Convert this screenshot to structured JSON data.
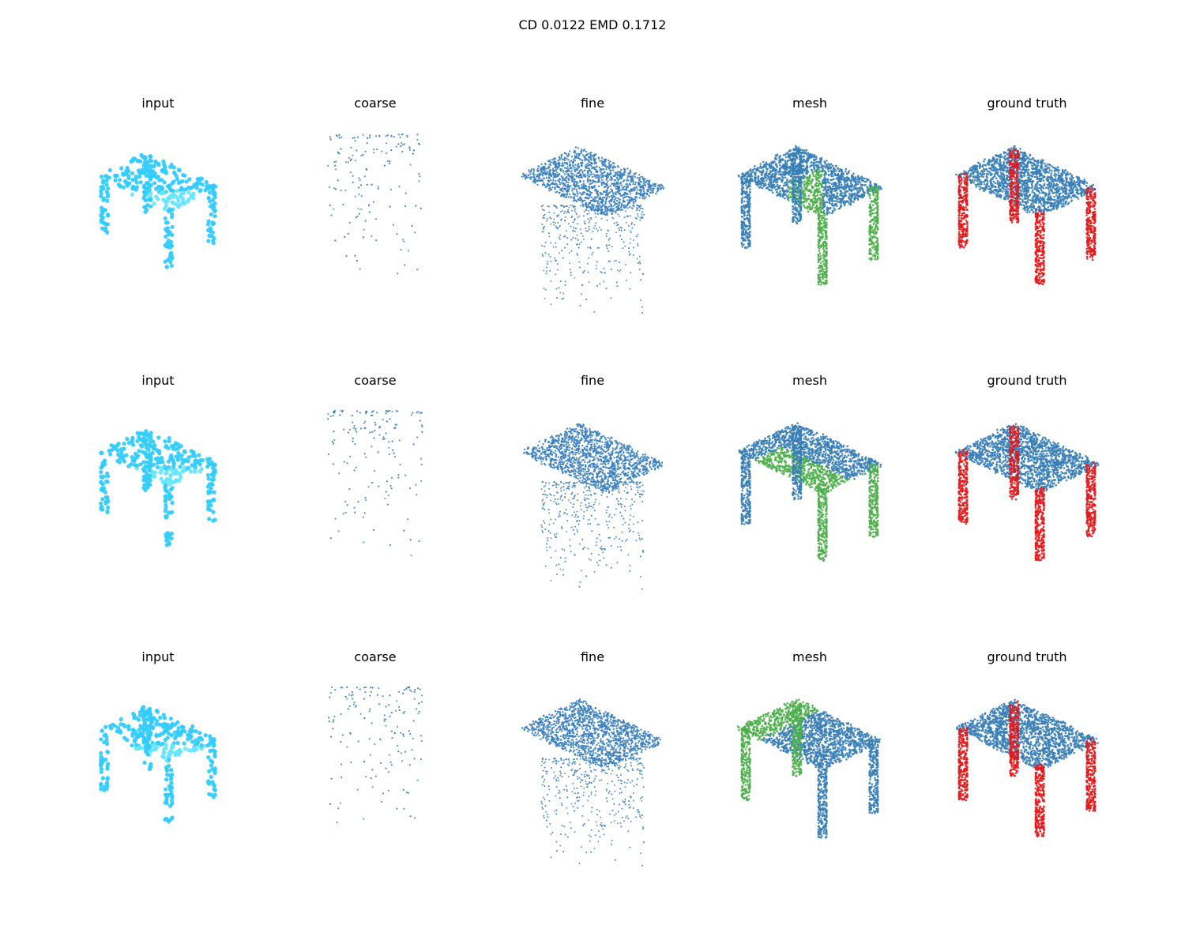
{
  "figure": {
    "title": "CD 0.0122  EMD 0.1712",
    "rows": [
      {
        "panels": [
          {
            "title": "input",
            "kind": "input"
          },
          {
            "title": "coarse",
            "kind": "coarse"
          },
          {
            "title": "fine",
            "kind": "fine"
          },
          {
            "title": "mesh",
            "kind": "mesh"
          },
          {
            "title": "ground truth",
            "kind": "gt"
          }
        ]
      },
      {
        "panels": [
          {
            "title": "input",
            "kind": "input"
          },
          {
            "title": "coarse",
            "kind": "coarse"
          },
          {
            "title": "fine",
            "kind": "fine"
          },
          {
            "title": "mesh",
            "kind": "mesh"
          },
          {
            "title": "ground truth",
            "kind": "gt"
          }
        ]
      },
      {
        "panels": [
          {
            "title": "input",
            "kind": "input"
          },
          {
            "title": "coarse",
            "kind": "coarse"
          },
          {
            "title": "fine",
            "kind": "fine"
          },
          {
            "title": "mesh",
            "kind": "mesh"
          },
          {
            "title": "ground truth",
            "kind": "gt"
          }
        ]
      }
    ]
  },
  "colors": {
    "input": "#33ccff",
    "input_light": "#66e6ff",
    "points": "#3a7fc0",
    "mesh_blue": "#377eb8",
    "mesh_green": "#4daf4a",
    "gt_red": "#e41a1c",
    "gt_blue": "#377eb8"
  }
}
